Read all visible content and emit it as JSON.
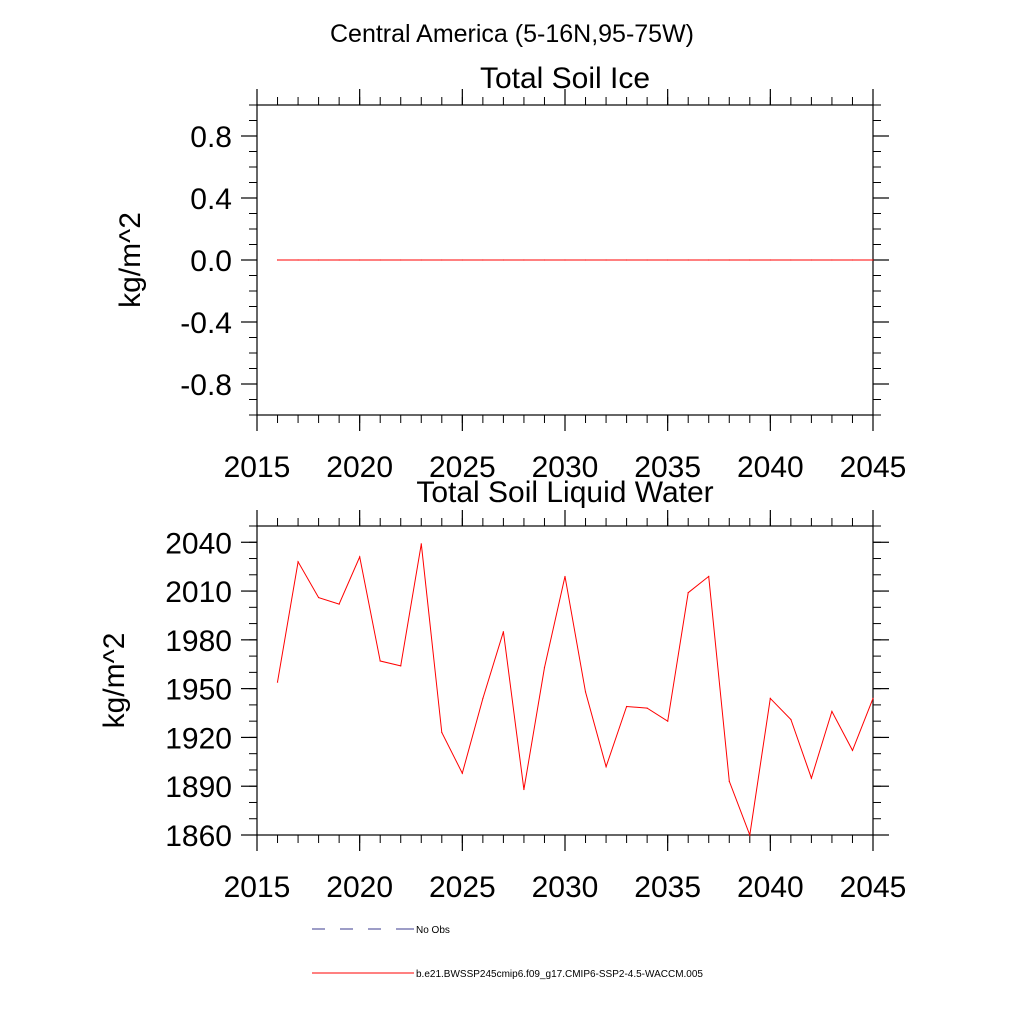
{
  "figure": {
    "region_title": "Central America (5-16N,95-75W)"
  },
  "chart_data": [
    {
      "type": "line",
      "title": "Total Soil Ice",
      "xlabel": "",
      "ylabel": "kg/m^2",
      "xlim": [
        2015,
        2045
      ],
      "ylim": [
        -1.0,
        1.0
      ],
      "xticks": [
        2015,
        2020,
        2025,
        2030,
        2035,
        2040,
        2045
      ],
      "xtick_labels": [
        "2015",
        "2020",
        "2025",
        "2030",
        "2035",
        "2040",
        "2045"
      ],
      "yticks": [
        0.8,
        0.4,
        0.0,
        -0.4,
        -0.8
      ],
      "ytick_labels": [
        "0.8",
        "0.4",
        "0.0",
        "-0.4",
        "-0.8"
      ],
      "y_minor_step": 0.1,
      "x_minor_step": 1,
      "grid": false,
      "series": [
        {
          "name": "b.e21.BWSSP245cmip6.f09_g17.CMIP6-SSP2-4.5-WACCM.005",
          "color": "#ff0000",
          "x": [
            2016,
            2017,
            2018,
            2019,
            2020,
            2021,
            2022,
            2023,
            2024,
            2025,
            2026,
            2027,
            2028,
            2029,
            2030,
            2031,
            2032,
            2033,
            2034,
            2035,
            2036,
            2037,
            2038,
            2039,
            2040,
            2041,
            2042,
            2043,
            2044,
            2045
          ],
          "values": [
            0,
            0,
            0,
            0,
            0,
            0,
            0,
            0,
            0,
            0,
            0,
            0,
            0,
            0,
            0,
            0,
            0,
            0,
            0,
            0,
            0,
            0,
            0,
            0,
            0,
            0,
            0,
            0,
            0,
            0
          ]
        }
      ]
    },
    {
      "type": "line",
      "title": "Total Soil Liquid Water",
      "xlabel": "",
      "ylabel": "kg/m^2",
      "xlim": [
        2015,
        2045
      ],
      "ylim": [
        1860,
        2050
      ],
      "xticks": [
        2015,
        2020,
        2025,
        2030,
        2035,
        2040,
        2045
      ],
      "xtick_labels": [
        "2015",
        "2020",
        "2025",
        "2030",
        "2035",
        "2040",
        "2045"
      ],
      "yticks": [
        2040,
        2010,
        1980,
        1950,
        1920,
        1890,
        1860
      ],
      "ytick_labels": [
        "2040",
        "2010",
        "1980",
        "1950",
        "1920",
        "1890",
        "1860"
      ],
      "y_minor_step": 10,
      "x_minor_step": 1,
      "grid": false,
      "series": [
        {
          "name": "b.e21.BWSSP245cmip6.f09_g17.CMIP6-SSP2-4.5-WACCM.005",
          "color": "#ff0000",
          "x": [
            2016,
            2017,
            2018,
            2019,
            2020,
            2021,
            2022,
            2023,
            2024,
            2025,
            2026,
            2027,
            2028,
            2029,
            2030,
            2031,
            2032,
            2033,
            2034,
            2035,
            2036,
            2037,
            2038,
            2039,
            2040,
            2041,
            2042,
            2043,
            2044,
            2045
          ],
          "values": [
            1954,
            2028,
            2006,
            2002,
            2031,
            1967,
            1964,
            2039,
            1923,
            1898,
            1944,
            1985,
            1888,
            1963,
            2019,
            1948,
            1902,
            1939,
            1938,
            1930,
            2009,
            2019,
            1893,
            1860,
            1944,
            1931,
            1895,
            1936,
            1912,
            1944
          ]
        }
      ]
    }
  ],
  "legend": {
    "placement": "bottom-left",
    "entries": [
      {
        "label": "No Obs",
        "color": "#3b3b8f",
        "style": "dashed"
      },
      {
        "label": "b.e21.BWSSP245cmip6.f09_g17.CMIP6-SSP2-4.5-WACCM.005",
        "color": "#ff0000",
        "style": "solid"
      }
    ]
  }
}
